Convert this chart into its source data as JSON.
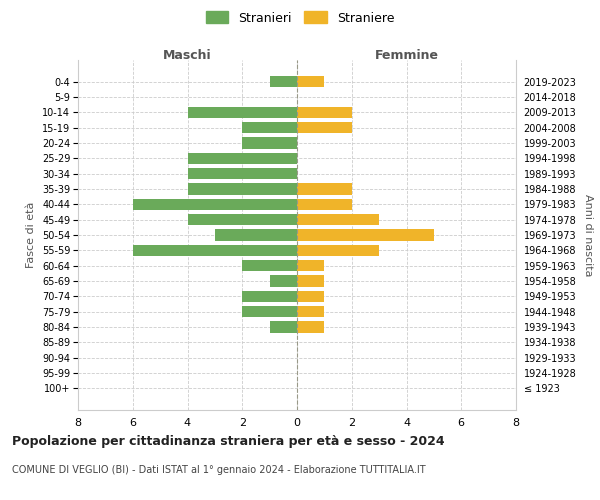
{
  "age_groups": [
    "100+",
    "95-99",
    "90-94",
    "85-89",
    "80-84",
    "75-79",
    "70-74",
    "65-69",
    "60-64",
    "55-59",
    "50-54",
    "45-49",
    "40-44",
    "35-39",
    "30-34",
    "25-29",
    "20-24",
    "15-19",
    "10-14",
    "5-9",
    "0-4"
  ],
  "birth_years": [
    "≤ 1923",
    "1924-1928",
    "1929-1933",
    "1934-1938",
    "1939-1943",
    "1944-1948",
    "1949-1953",
    "1954-1958",
    "1959-1963",
    "1964-1968",
    "1969-1973",
    "1974-1978",
    "1979-1983",
    "1984-1988",
    "1989-1993",
    "1994-1998",
    "1999-2003",
    "2004-2008",
    "2009-2013",
    "2014-2018",
    "2019-2023"
  ],
  "maschi": [
    0,
    0,
    0,
    0,
    1,
    2,
    2,
    1,
    2,
    6,
    3,
    4,
    6,
    4,
    4,
    4,
    2,
    2,
    4,
    0,
    1
  ],
  "femmine": [
    0,
    0,
    0,
    0,
    1,
    1,
    1,
    1,
    1,
    3,
    5,
    3,
    2,
    2,
    0,
    0,
    0,
    2,
    2,
    0,
    1
  ],
  "maschi_color": "#6aaa5a",
  "femmine_color": "#f0b429",
  "background_color": "#ffffff",
  "grid_color": "#cccccc",
  "grid_style": "--",
  "title": "Popolazione per cittadinanza straniera per età e sesso - 2024",
  "subtitle": "COMUNE DI VEGLIO (BI) - Dati ISTAT al 1° gennaio 2024 - Elaborazione TUTTITALIA.IT",
  "xlabel_left": "Maschi",
  "xlabel_right": "Femmine",
  "ylabel_left": "Fasce di età",
  "ylabel_right": "Anni di nascita",
  "legend_stranieri": "Stranieri",
  "legend_straniere": "Straniere",
  "xlim": 8,
  "bar_height": 0.75
}
